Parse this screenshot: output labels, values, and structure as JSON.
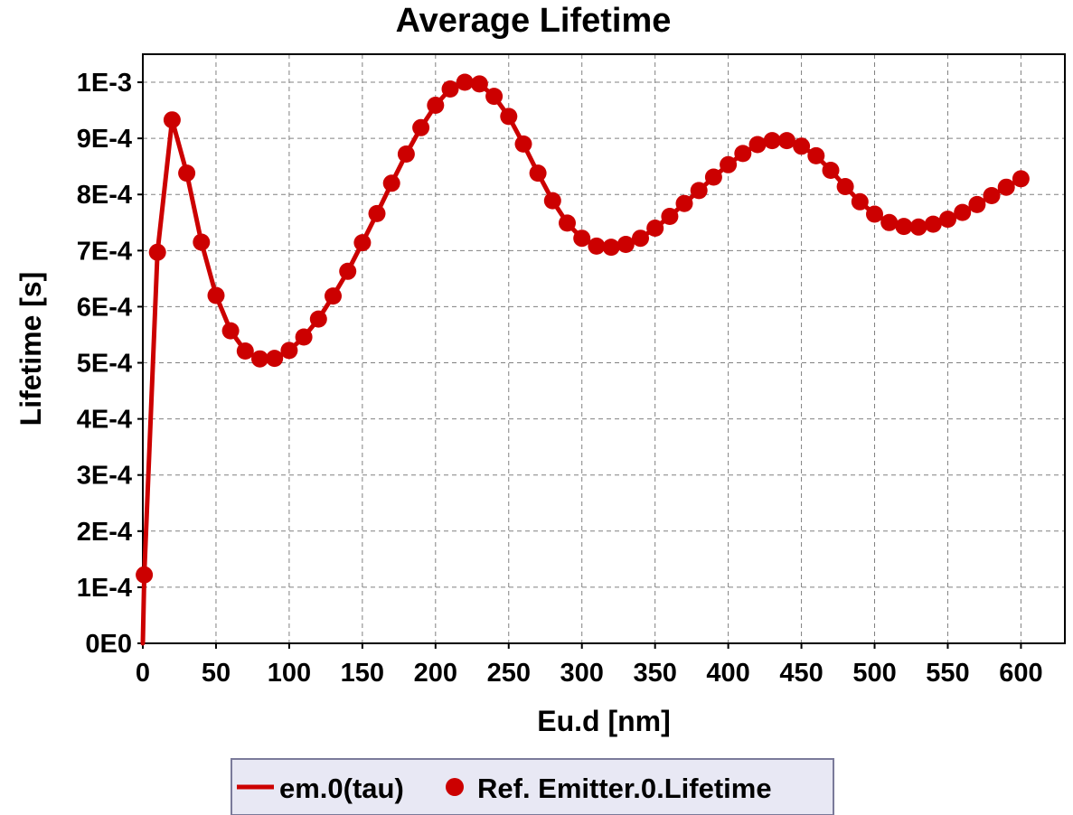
{
  "chart_data": {
    "type": "line",
    "title": "Average Lifetime",
    "xlabel": "Eu.d [nm]",
    "ylabel": "Lifetime [s]",
    "xlim": [
      0,
      630
    ],
    "ylim": [
      0,
      0.00105
    ],
    "x_ticks": [
      0,
      50,
      100,
      150,
      200,
      250,
      300,
      350,
      400,
      450,
      500,
      550,
      600
    ],
    "x_tick_labels": [
      "0",
      "50",
      "100",
      "150",
      "200",
      "250",
      "300",
      "350",
      "400",
      "450",
      "500",
      "550",
      "600"
    ],
    "y_ticks": [
      0,
      0.0001,
      0.0002,
      0.0003,
      0.0004,
      0.0005,
      0.0006,
      0.0007,
      0.0008,
      0.0009,
      0.001
    ],
    "y_tick_labels": [
      "0E0",
      "1E-4",
      "2E-4",
      "3E-4",
      "4E-4",
      "5E-4",
      "6E-4",
      "7E-4",
      "8E-4",
      "9E-4",
      "1E-3"
    ],
    "grid": true,
    "legend_position": "bottom",
    "colors": {
      "series": "#cc0000",
      "legend_border": "#7a7a9a",
      "legend_fill": "#e8e8f4"
    },
    "series": [
      {
        "name": "em.0(tau)",
        "style": "line",
        "x": [
          0,
          1,
          10,
          20,
          30,
          40,
          50,
          60,
          70,
          80,
          90,
          100,
          110,
          120,
          130,
          140,
          150,
          160,
          170,
          180,
          190,
          200,
          210,
          220,
          230,
          240,
          250,
          260,
          270,
          280,
          290,
          300,
          310,
          320,
          330,
          340,
          350,
          360,
          370,
          380,
          390,
          400,
          410,
          420,
          430,
          440,
          450,
          460,
          470,
          480,
          490,
          500,
          510,
          520,
          530,
          540,
          550,
          560,
          570,
          580,
          590,
          600
        ],
        "y": [
          0.0,
          0.000122,
          0.000697,
          0.000933,
          0.000838,
          0.000715,
          0.00062,
          0.000557,
          0.000521,
          0.000507,
          0.000508,
          0.000522,
          0.000546,
          0.000578,
          0.000619,
          0.000663,
          0.000714,
          0.000766,
          0.00082,
          0.000872,
          0.000919,
          0.000959,
          0.000988,
          0.001,
          0.000997,
          0.000975,
          0.000939,
          0.00089,
          0.000838,
          0.000789,
          0.000749,
          0.000722,
          0.000708,
          0.000706,
          0.000711,
          0.000722,
          0.00074,
          0.000761,
          0.000784,
          0.000807,
          0.000831,
          0.000853,
          0.000873,
          0.000889,
          0.000896,
          0.000896,
          0.000886,
          0.000869,
          0.000843,
          0.000814,
          0.000787,
          0.000765,
          0.00075,
          0.000743,
          0.000742,
          0.000747,
          0.000756,
          0.000768,
          0.000782,
          0.000798,
          0.000813,
          0.000828
        ]
      },
      {
        "name": "Ref. Emitter.0.Lifetime",
        "style": "markers",
        "x": [
          1,
          10,
          20,
          30,
          40,
          50,
          60,
          70,
          80,
          90,
          100,
          110,
          120,
          130,
          140,
          150,
          160,
          170,
          180,
          190,
          200,
          210,
          220,
          230,
          240,
          250,
          260,
          270,
          280,
          290,
          300,
          310,
          320,
          330,
          340,
          350,
          360,
          370,
          380,
          390,
          400,
          410,
          420,
          430,
          440,
          450,
          460,
          470,
          480,
          490,
          500,
          510,
          520,
          530,
          540,
          550,
          560,
          570,
          580,
          590,
          600
        ],
        "y": [
          0.000122,
          0.000697,
          0.000933,
          0.000838,
          0.000715,
          0.00062,
          0.000557,
          0.000521,
          0.000507,
          0.000508,
          0.000522,
          0.000546,
          0.000578,
          0.000619,
          0.000663,
          0.000714,
          0.000766,
          0.00082,
          0.000872,
          0.000919,
          0.000959,
          0.000988,
          0.001,
          0.000997,
          0.000975,
          0.000939,
          0.00089,
          0.000838,
          0.000789,
          0.000749,
          0.000722,
          0.000708,
          0.000706,
          0.000711,
          0.000722,
          0.00074,
          0.000761,
          0.000784,
          0.000807,
          0.000831,
          0.000853,
          0.000873,
          0.000889,
          0.000896,
          0.000896,
          0.000886,
          0.000869,
          0.000843,
          0.000814,
          0.000787,
          0.000765,
          0.00075,
          0.000743,
          0.000742,
          0.000747,
          0.000756,
          0.000768,
          0.000782,
          0.000798,
          0.000813,
          0.000828
        ]
      }
    ]
  }
}
